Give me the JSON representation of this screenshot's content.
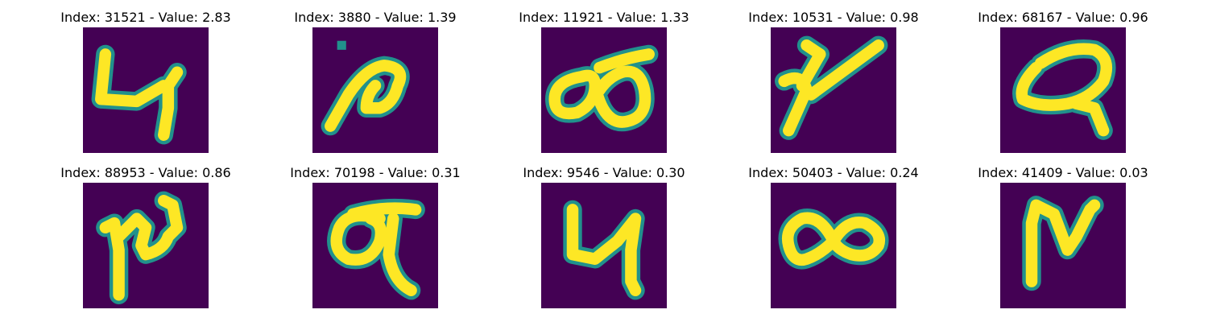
{
  "colors": {
    "background": "#440154",
    "mid": "#21918c",
    "stroke": "#fde725"
  },
  "panels": [
    {
      "title": "Index: 31521 - Value: 2.83",
      "glyph": "4"
    },
    {
      "title": "Index: 3880 - Value: 1.39",
      "glyph": "a"
    },
    {
      "title": "Index: 11921 - Value: 1.33",
      "glyph": "loops"
    },
    {
      "title": "Index: 10531 - Value: 0.98",
      "glyph": "y"
    },
    {
      "title": "Index: 68167 - Value: 0.96",
      "glyph": "Q"
    },
    {
      "title": "Index: 88953 - Value: 0.86",
      "glyph": "N"
    },
    {
      "title": "Index: 70198 - Value: 0.31",
      "glyph": "9"
    },
    {
      "title": "Index: 9546 - Value: 0.30",
      "glyph": "4"
    },
    {
      "title": "Index: 50403 - Value: 0.24",
      "glyph": "8"
    },
    {
      "title": "Index: 41409 - Value: 0.03",
      "glyph": "N"
    }
  ]
}
